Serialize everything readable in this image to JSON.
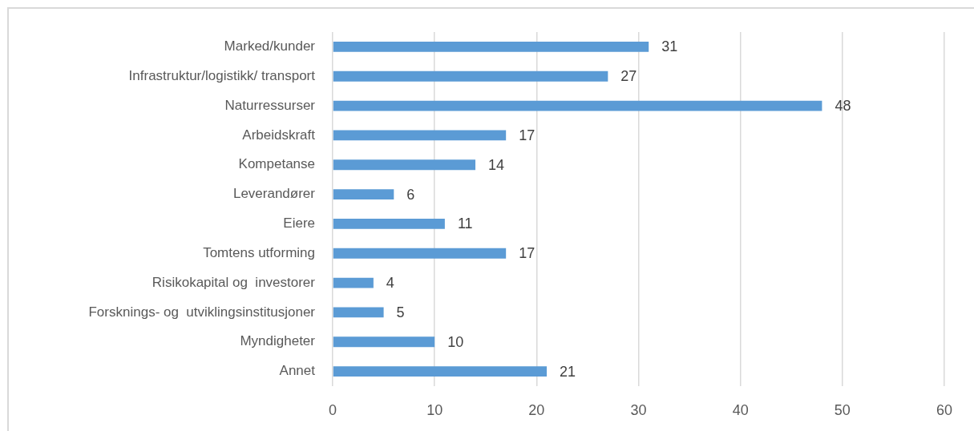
{
  "chart_data": {
    "type": "bar",
    "orientation": "horizontal",
    "categories": [
      "Marked/kunder",
      "Infrastruktur/logistikk/ transport",
      "Naturressurser",
      "Arbeidskraft",
      "Kompetanse",
      "Leverandører",
      "Eiere",
      "Tomtens utforming",
      "Risikokapital og  investorer",
      "Forsknings- og  utviklingsinstitusjoner",
      "Myndigheter",
      "Annet"
    ],
    "values": [
      31,
      27,
      48,
      17,
      14,
      6,
      11,
      17,
      4,
      5,
      10,
      21
    ],
    "color": "#5b9bd5",
    "xlim": [
      0,
      60
    ],
    "xticks": [
      0,
      10,
      20,
      30,
      40,
      50,
      60
    ],
    "grid": "x",
    "data_labels": true
  }
}
